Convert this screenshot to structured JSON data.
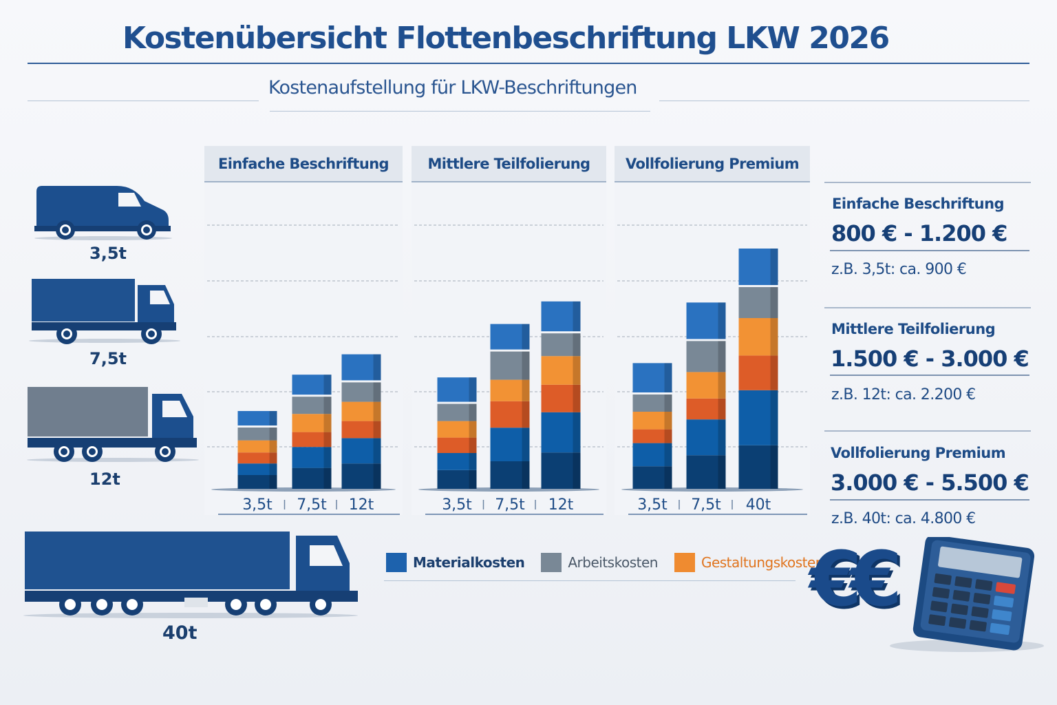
{
  "title": "Kostenübersicht Flottenbeschriftung LKW 2026",
  "subtitle": "Kostenaufstellung für LKW-Beschriftungen",
  "colors": {
    "material_dark": "#0b3f73",
    "material": "#0e5ea8",
    "material_top": "#2a72c0",
    "gestaltung_dark": "#dd5c28",
    "gestaltung": "#f29234",
    "arbeit": "#798896",
    "brand": "#1f4f8f"
  },
  "vehicles": [
    {
      "label": "3,5t",
      "icon": "van-icon"
    },
    {
      "label": "7,5t",
      "icon": "box-truck-icon"
    },
    {
      "label": "12t",
      "icon": "truck-icon"
    },
    {
      "label": "40t",
      "icon": "semi-truck-icon"
    }
  ],
  "chart_data": [
    {
      "type": "bar",
      "stacked": true,
      "title": "Einfache Beschriftung",
      "categories": [
        "3,5t",
        "7,5t",
        "12t"
      ],
      "grid": true,
      "segments_bottom_to_top": [
        "Materialkosten",
        "Materialkosten",
        "Gestaltungskosten",
        "Gestaltungskosten",
        "Arbeitskosten",
        "Materialkosten"
      ],
      "values": [
        [
          0.25,
          0.21,
          0.2,
          0.22,
          0.27,
          0.3
        ],
        [
          0.38,
          0.38,
          0.27,
          0.33,
          0.35,
          0.4
        ],
        [
          0.46,
          0.46,
          0.31,
          0.35,
          0.39,
          0.51
        ]
      ]
    },
    {
      "type": "bar",
      "stacked": true,
      "title": "Mittlere Teilfolierung",
      "categories": [
        "3,5t",
        "7,5t",
        "12t"
      ],
      "grid": true,
      "segments_bottom_to_top": [
        "Materialkosten",
        "Materialkosten",
        "Gestaltungskosten",
        "Gestaltungskosten",
        "Arbeitskosten",
        "Materialkosten"
      ],
      "values": [
        [
          0.34,
          0.31,
          0.28,
          0.3,
          0.35,
          0.48
        ],
        [
          0.5,
          0.61,
          0.48,
          0.39,
          0.55,
          0.5
        ],
        [
          0.66,
          0.73,
          0.5,
          0.52,
          0.45,
          0.58
        ]
      ]
    },
    {
      "type": "bar",
      "stacked": true,
      "title": "Vollfolierung Premium",
      "categories": [
        "3,5t",
        "7,5t",
        "40t"
      ],
      "grid": true,
      "segments_bottom_to_top": [
        "Materialkosten",
        "Materialkosten",
        "Gestaltungskosten",
        "Gestaltungskosten",
        "Arbeitskosten",
        "Materialkosten"
      ],
      "values": [
        [
          0.41,
          0.42,
          0.25,
          0.32,
          0.35,
          0.57
        ],
        [
          0.61,
          0.65,
          0.38,
          0.48,
          0.6,
          0.7
        ],
        [
          0.79,
          1.0,
          0.63,
          0.68,
          0.6,
          0.7
        ]
      ]
    }
  ],
  "legend": [
    {
      "label": "Materialkosten",
      "color": "#1d62ad"
    },
    {
      "label": "Arbeitskosten",
      "color": "#798896"
    },
    {
      "label": "Gestaltungskosten",
      "color": "#ef8b30"
    }
  ],
  "summary": [
    {
      "name": "Einfache Beschriftung",
      "range": "800 € - 1.200 €",
      "example": "z.B. 3,5t: ca. 900 €"
    },
    {
      "name": "Mittlere Teilfolierung",
      "range": "1.500 € - 3.000 €",
      "example": "z.B. 12t: ca. 2.200 €"
    },
    {
      "name": "Vollfolierung Premium",
      "range": "3.000 € - 5.500 €",
      "example": "z.B. 40t: ca. 4.800 €"
    }
  ],
  "decor": {
    "euro_symbols": "€€",
    "calculator_icon": "calculator-icon"
  }
}
